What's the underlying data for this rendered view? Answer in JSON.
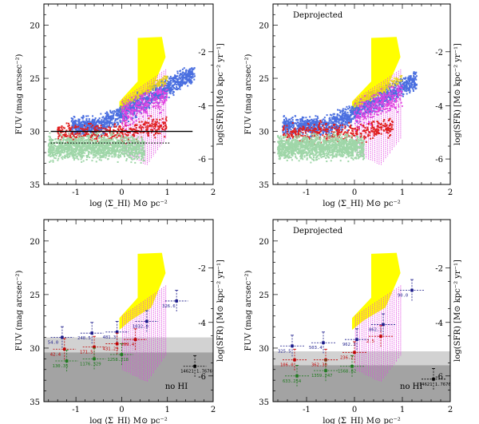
{
  "figure": {
    "description_labels": {
      "deprojected": "Deprojected",
      "no_hi": "no HI"
    }
  },
  "chart_data": [
    {
      "id": "p1",
      "type": "scatter",
      "title": "",
      "xlabel": "log ⟨Σ_HI⟩  M⊙ pc⁻²",
      "ylabel": "FUV (mag arcsec⁻²)",
      "y2label": "log(SFR) [M⊙ kpc⁻² yr⁻¹]",
      "xlim": [
        -1.7,
        2.0
      ],
      "ylim": [
        35,
        18
      ],
      "xticks": [
        -1,
        0,
        1,
        2
      ],
      "yticks": [
        20,
        25,
        30,
        35
      ],
      "y2ticks": [
        {
          "value": -2,
          "fuv": 22.5
        },
        {
          "value": -4,
          "fuv": 27.6
        },
        {
          "value": -6,
          "fuv": 32.6
        }
      ],
      "annotation": "",
      "hlines": [
        {
          "y": 30.0,
          "x": [
            -1.55,
            1.55
          ],
          "style": "solid"
        },
        {
          "y": 31.1,
          "x": [
            -1.55,
            1.05
          ],
          "style": "dotted"
        }
      ],
      "series": [
        {
          "name": "blue",
          "color": "#4a6fe0",
          "n": 1300,
          "x": [
            -1.1,
            1.6
          ],
          "y": [
            24.5,
            30.5
          ],
          "trend": "rising"
        },
        {
          "name": "red",
          "color": "#e02020",
          "n": 450,
          "x": [
            -1.4,
            1.0
          ],
          "y": [
            28.5,
            33.5
          ],
          "trend": "flat"
        },
        {
          "name": "green",
          "color": "#9fd6a8",
          "n": 1400,
          "x": [
            -1.6,
            0.5
          ],
          "y": [
            29.8,
            34.5
          ],
          "trend": "flat"
        },
        {
          "name": "yellow",
          "color": "#e6d020",
          "n": 300,
          "x": [
            0.0,
            1.0
          ],
          "y": [
            24.0,
            28.5
          ],
          "trend": "rising"
        },
        {
          "name": "magenta",
          "color": "#e040e0",
          "n": 500,
          "x": [
            0.0,
            1.0
          ],
          "y": [
            25.5,
            33.0
          ],
          "trend": "rising"
        }
      ]
    },
    {
      "id": "p2",
      "type": "scatter",
      "title": "Deprojected",
      "xlabel": "log ⟨Σ_HI⟩  M⊙ pc⁻²",
      "ylabel": "FUV (mag arcsec⁻²)",
      "y2label": "log(SFR) [M⊙ kpc⁻² yr⁻¹]",
      "xlim": [
        -1.7,
        2.0
      ],
      "ylim": [
        35,
        18
      ],
      "xticks": [
        -1,
        0,
        1,
        2
      ],
      "yticks": [
        20,
        25,
        30,
        35
      ],
      "y2ticks": [
        {
          "value": -2,
          "fuv": 22.5
        },
        {
          "value": -4,
          "fuv": 27.6
        },
        {
          "value": -6,
          "fuv": 32.6
        }
      ],
      "annotation": "",
      "hlines": [],
      "series": [
        {
          "name": "blue",
          "color": "#4a6fe0",
          "n": 1300,
          "x": [
            -1.5,
            1.3
          ],
          "y": [
            24.5,
            31.0
          ],
          "trend": "rising"
        },
        {
          "name": "red",
          "color": "#e02020",
          "n": 450,
          "x": [
            -1.5,
            0.8
          ],
          "y": [
            28.5,
            33.5
          ],
          "trend": "flat"
        },
        {
          "name": "green",
          "color": "#9fd6a8",
          "n": 1400,
          "x": [
            -1.6,
            0.2
          ],
          "y": [
            29.8,
            34.5
          ],
          "trend": "flat"
        },
        {
          "name": "yellow",
          "color": "#e6d020",
          "n": 300,
          "x": [
            0.0,
            1.0
          ],
          "y": [
            24.0,
            28.5
          ],
          "trend": "rising"
        },
        {
          "name": "magenta",
          "color": "#e040e0",
          "n": 500,
          "x": [
            0.0,
            1.0
          ],
          "y": [
            25.5,
            33.0
          ],
          "trend": "rising"
        }
      ]
    },
    {
      "id": "p3",
      "type": "scatter",
      "title": "",
      "xlabel": "log ⟨Σ_HI⟩  M⊙ pc⁻²",
      "ylabel": "FUV (mag arcsec⁻²)",
      "y2label": "log(SFR) [M⊙ kpc⁻² yr⁻¹]",
      "xlim": [
        -1.7,
        2.0
      ],
      "ylim": [
        35,
        18
      ],
      "xticks": [
        -1,
        0,
        1,
        2
      ],
      "yticks": [
        20,
        25,
        30,
        35
      ],
      "y2ticks": [
        {
          "value": -2,
          "fuv": 22.5
        },
        {
          "value": -4,
          "fuv": 27.6
        },
        {
          "value": -6,
          "fuv": 32.6
        }
      ],
      "bands": [
        {
          "y": [
            29.0,
            30.4
          ],
          "color": "#d2d2d2"
        },
        {
          "y": [
            30.4,
            35
          ],
          "color": "#a3a3a3"
        }
      ],
      "annotation": "no HI",
      "points": [
        {
          "x": -1.3,
          "y": 29.0,
          "color": "#1a1a8a",
          "label": "54.0",
          "err": 1.0
        },
        {
          "x": -0.65,
          "y": 28.6,
          "color": "#1a1a8a",
          "label": "248.5",
          "err": 1.0
        },
        {
          "x": -0.1,
          "y": 28.5,
          "color": "#1a1a8a",
          "label": "481.3",
          "err": 1.0
        },
        {
          "x": 0.55,
          "y": 27.5,
          "color": "#1a1a8a",
          "label": "1032.0",
          "err": 1.0
        },
        {
          "x": 1.2,
          "y": 25.6,
          "color": "#1a1a8a",
          "label": "326.6",
          "err": 1.0
        },
        {
          "x": -1.25,
          "y": 30.1,
          "color": "#c00000",
          "label": "42.4",
          "err": 1.0
        },
        {
          "x": -0.6,
          "y": 29.9,
          "color": "#c00000",
          "label": "171.5",
          "err": 1.0
        },
        {
          "x": -0.1,
          "y": 29.6,
          "color": "#c00000",
          "label": "431.29",
          "err": 1.0
        },
        {
          "x": 0.3,
          "y": 29.2,
          "color": "#c00000",
          "label": "269.4",
          "err": 1.0
        },
        {
          "x": -1.2,
          "y": 31.2,
          "color": "#1e7a1e",
          "label": "130.35",
          "err": 1.0
        },
        {
          "x": -0.6,
          "y": 31.0,
          "color": "#1e7a1e",
          "label": "1176.329",
          "err": 1.0
        },
        {
          "x": 0.0,
          "y": 30.6,
          "color": "#1e7a1e",
          "label": "1258.218",
          "err": 1.0
        },
        {
          "x": 1.6,
          "y": 31.7,
          "color": "#000000",
          "label": "14621 1.76769",
          "err": 1.0
        }
      ]
    },
    {
      "id": "p4",
      "type": "scatter",
      "title": "Deprojected",
      "xlabel": "log ⟨Σ_HI⟩  M⊙ pc⁻²",
      "ylabel": "FUV (mag arcsec⁻²)",
      "y2label": "log(SFR) [M⊙ kpc⁻² yr⁻¹]",
      "xlim": [
        -1.7,
        2.0
      ],
      "ylim": [
        35,
        18
      ],
      "xticks": [
        -1,
        0,
        1,
        2
      ],
      "yticks": [
        20,
        25,
        30,
        35
      ],
      "y2ticks": [
        {
          "value": -2,
          "fuv": 22.5
        },
        {
          "value": -4,
          "fuv": 27.6
        },
        {
          "value": -6,
          "fuv": 32.6
        }
      ],
      "bands": [
        {
          "y": [
            30.3,
            31.6
          ],
          "color": "#d2d2d2"
        },
        {
          "y": [
            31.6,
            35
          ],
          "color": "#a3a3a3"
        }
      ],
      "annotation": "no HI",
      "points": [
        {
          "x": -1.3,
          "y": 29.8,
          "color": "#1a1a8a",
          "label": "325.5",
          "err": 1.0
        },
        {
          "x": -0.65,
          "y": 29.5,
          "color": "#1a1a8a",
          "label": "503.4",
          "err": 1.0
        },
        {
          "x": 0.05,
          "y": 29.2,
          "color": "#1a1a8a",
          "label": "962.3",
          "err": 1.0
        },
        {
          "x": 0.6,
          "y": 27.8,
          "color": "#1a1a8a",
          "label": "862.1",
          "err": 1.0
        },
        {
          "x": 1.2,
          "y": 24.6,
          "color": "#1a1a8a",
          "label": "90.0",
          "err": 1.0
        },
        {
          "x": -1.25,
          "y": 31.1,
          "color": "#c00000",
          "label": "106.0",
          "err": 1.0
        },
        {
          "x": -0.6,
          "y": 31.1,
          "color": "#c00000",
          "label": "362.30",
          "err": 1.0
        },
        {
          "x": 0.0,
          "y": 30.4,
          "color": "#c00000",
          "label": "236.2",
          "err": 1.0
        },
        {
          "x": 0.55,
          "y": 28.9,
          "color": "#c00000",
          "label": "2.5",
          "err": 1.0
        },
        {
          "x": -1.2,
          "y": 32.6,
          "color": "#1e7a1e",
          "label": "633.254",
          "err": 1.0
        },
        {
          "x": -0.6,
          "y": 32.1,
          "color": "#1e7a1e",
          "label": "1359.247",
          "err": 1.0
        },
        {
          "x": -0.05,
          "y": 31.7,
          "color": "#1e7a1e",
          "label": "1568.82",
          "err": 1.0
        },
        {
          "x": 1.65,
          "y": 32.9,
          "color": "#000000",
          "label": "14621 1.76769",
          "err": 1.0
        }
      ]
    }
  ]
}
